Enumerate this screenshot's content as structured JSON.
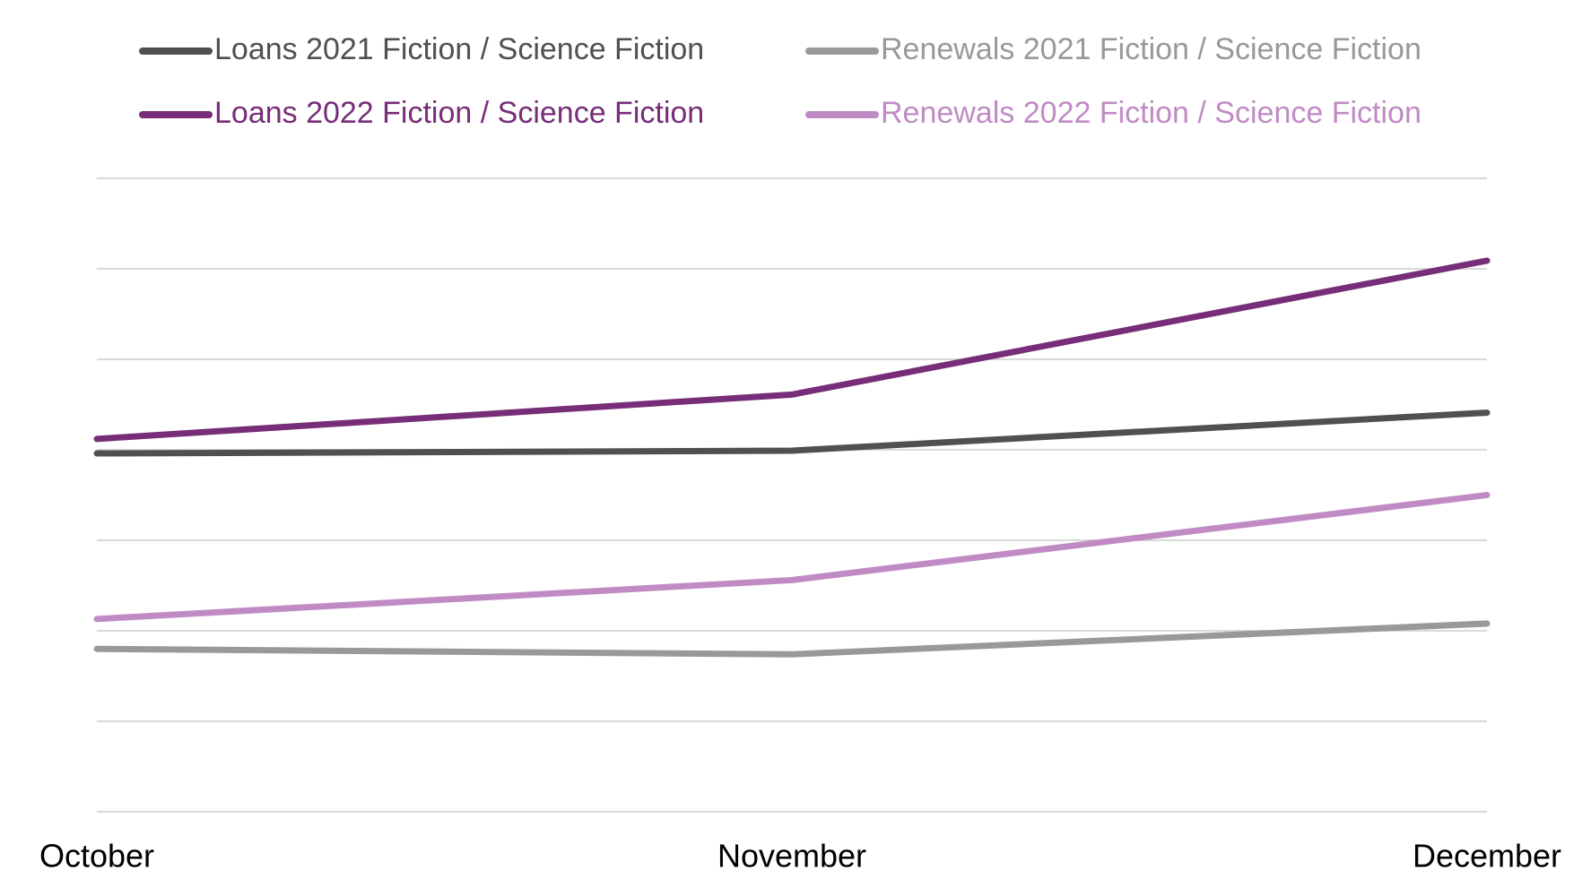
{
  "chart_data": {
    "type": "line",
    "x": [
      "October",
      "November",
      "December"
    ],
    "series": [
      {
        "name": "Loans 2021 Fiction / Science Fiction",
        "color": "#505050",
        "values": [
          3.96,
          3.99,
          4.41
        ]
      },
      {
        "name": "Renewals 2021 Fiction / Science Fiction",
        "color": "#999999",
        "values": [
          1.8,
          1.74,
          2.08
        ]
      },
      {
        "name": "Loans 2022 Fiction / Science Fiction",
        "color": "#772d78",
        "values": [
          4.12,
          4.61,
          6.09
        ]
      },
      {
        "name": "Renewals 2022 Fiction / Science Fiction",
        "color": "#c08bc4",
        "values": [
          2.13,
          2.56,
          3.5
        ]
      }
    ],
    "ylim": [
      0,
      7
    ],
    "yticks": [
      0,
      1,
      2,
      3,
      4,
      5,
      6,
      7
    ],
    "grid": true,
    "legend": "top"
  }
}
